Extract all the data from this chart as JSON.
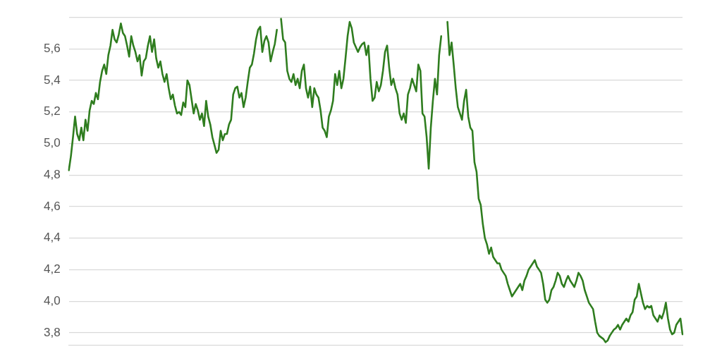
{
  "chart_data": {
    "type": "line",
    "categories": [
      null,
      null,
      null,
      null,
      null,
      null,
      null,
      null,
      null,
      null,
      null,
      null,
      null,
      null,
      null,
      null,
      null,
      null,
      null,
      null,
      null,
      null,
      null,
      null,
      null,
      null,
      null,
      null,
      null,
      null,
      null,
      null,
      null,
      null,
      null,
      null,
      null,
      null,
      null,
      null,
      null,
      null,
      null,
      null,
      null,
      null,
      null,
      null,
      null,
      null,
      null,
      null,
      null,
      null,
      null,
      null,
      null,
      null,
      null,
      null,
      null,
      null,
      null,
      null,
      null,
      null,
      null,
      null,
      null,
      null,
      null,
      null,
      null,
      null,
      null,
      null,
      null,
      null,
      null,
      null,
      null,
      null,
      null,
      null,
      null,
      null,
      null,
      null,
      null,
      null,
      null,
      null,
      null,
      null,
      null,
      null,
      null,
      null,
      null,
      null,
      null,
      null,
      null,
      null,
      null,
      null,
      null,
      null,
      null,
      null,
      null,
      null,
      null,
      null,
      null,
      null,
      null,
      null,
      null,
      null,
      null,
      null,
      null,
      null,
      null,
      null,
      null,
      null,
      null,
      null,
      null,
      null,
      null,
      null,
      null,
      null,
      null,
      null,
      null,
      null,
      null,
      null,
      null,
      null,
      null,
      null,
      null,
      null,
      null,
      null,
      null,
      null,
      null,
      null,
      null,
      null,
      null,
      null,
      null,
      null,
      null,
      null,
      null,
      null,
      null,
      null,
      null,
      null,
      null,
      null,
      null,
      null,
      null,
      null,
      null,
      null,
      null,
      null,
      null,
      null,
      null,
      null,
      null,
      null,
      null,
      null,
      null,
      null,
      null,
      null,
      null,
      null,
      null,
      null,
      null,
      null,
      null,
      null,
      null,
      null,
      null,
      null,
      null,
      null,
      null,
      null,
      null,
      null,
      null,
      null,
      null,
      null,
      null,
      null,
      null,
      null,
      null,
      null,
      null,
      null,
      null,
      null,
      null,
      null,
      null,
      null,
      null,
      null,
      null,
      null,
      null,
      null,
      null,
      null,
      null,
      null,
      null,
      null,
      null,
      null,
      null,
      null,
      null,
      null,
      null,
      null,
      null,
      null,
      null,
      null,
      null,
      null,
      null,
      null,
      null,
      null,
      null,
      null,
      null,
      null,
      null,
      null,
      null,
      null,
      null,
      null,
      null,
      null,
      null,
      null,
      null,
      null,
      null,
      null,
      null,
      null,
      null,
      null,
      null,
      null,
      null,
      null,
      null,
      null,
      null,
      null,
      null,
      null,
      null,
      null,
      null,
      null,
      null,
      null,
      null,
      null
    ],
    "series": [
      {
        "color": "#2f7d1f",
        "values": [
          4.83,
          4.92,
          5.04,
          5.17,
          5.06,
          5.02,
          5.1,
          5.02,
          5.15,
          5.08,
          5.21,
          5.27,
          5.25,
          5.32,
          5.28,
          5.39,
          5.46,
          5.5,
          5.44,
          5.56,
          5.62,
          5.72,
          5.66,
          5.64,
          5.69,
          5.76,
          5.7,
          5.68,
          5.62,
          5.55,
          5.68,
          5.62,
          5.58,
          5.52,
          5.56,
          5.43,
          5.52,
          5.54,
          5.62,
          5.68,
          5.58,
          5.66,
          5.54,
          5.48,
          5.52,
          5.44,
          5.39,
          5.44,
          5.35,
          5.28,
          5.31,
          5.24,
          5.19,
          5.2,
          5.18,
          5.26,
          5.23,
          5.4,
          5.37,
          5.28,
          5.19,
          5.25,
          5.21,
          5.15,
          5.19,
          5.11,
          5.27,
          5.17,
          5.12,
          5.04,
          4.99,
          4.94,
          4.96,
          5.08,
          5.02,
          5.06,
          5.06,
          5.12,
          5.15,
          5.31,
          5.35,
          5.36,
          5.29,
          5.32,
          5.23,
          5.29,
          5.39,
          5.48,
          5.5,
          5.57,
          5.66,
          5.72,
          5.74,
          5.58,
          5.65,
          5.68,
          5.64,
          5.52,
          5.58,
          5.63,
          5.72,
          null,
          5.79,
          5.66,
          5.64,
          5.46,
          5.41,
          5.39,
          5.44,
          5.37,
          5.41,
          5.35,
          5.46,
          5.5,
          5.35,
          5.29,
          5.36,
          5.23,
          5.35,
          5.31,
          5.29,
          5.21,
          5.1,
          5.08,
          5.04,
          5.17,
          5.21,
          5.27,
          5.44,
          5.37,
          5.46,
          5.35,
          5.41,
          5.54,
          5.68,
          5.77,
          5.73,
          5.64,
          5.61,
          5.58,
          5.61,
          5.63,
          5.64,
          5.56,
          5.62,
          5.41,
          5.27,
          5.29,
          5.39,
          5.33,
          5.37,
          5.46,
          5.58,
          5.62,
          5.48,
          5.37,
          5.41,
          5.35,
          5.31,
          5.19,
          5.15,
          5.19,
          5.13,
          5.31,
          5.35,
          5.41,
          5.37,
          5.33,
          5.5,
          5.46,
          5.19,
          5.17,
          5.04,
          4.84,
          5.1,
          5.27,
          5.41,
          5.31,
          5.56,
          5.68,
          null,
          null,
          5.77,
          5.56,
          5.64,
          5.5,
          5.35,
          5.23,
          5.19,
          5.15,
          5.27,
          5.34,
          5.17,
          5.1,
          5.08,
          4.88,
          4.82,
          4.65,
          4.61,
          4.49,
          4.4,
          4.36,
          4.3,
          4.34,
          4.28,
          4.26,
          4.24,
          4.24,
          4.2,
          4.18,
          4.16,
          4.11,
          4.07,
          4.03,
          4.05,
          4.07,
          4.09,
          4.11,
          4.07,
          4.13,
          4.16,
          4.2,
          4.22,
          4.24,
          4.26,
          4.22,
          4.2,
          4.18,
          4.11,
          4.01,
          3.99,
          4.01,
          4.07,
          4.09,
          4.13,
          4.18,
          4.16,
          4.11,
          4.09,
          4.13,
          4.16,
          4.13,
          4.11,
          4.09,
          4.13,
          4.18,
          4.16,
          4.13,
          4.07,
          4.03,
          3.99,
          3.97,
          3.95,
          3.87,
          3.8,
          3.78,
          3.77,
          3.76,
          3.74,
          3.75,
          3.78,
          3.8,
          3.82,
          3.83,
          3.85,
          3.82,
          3.85,
          3.87,
          3.89,
          3.87,
          3.91,
          3.93,
          4.01,
          4.03,
          4.11,
          4.05,
          3.99,
          3.95,
          3.97,
          3.96,
          3.97,
          3.91,
          3.89,
          3.87,
          3.91,
          3.89,
          3.93,
          3.99,
          3.89,
          3.82,
          3.79,
          3.8,
          3.85,
          3.87,
          3.89,
          3.79
        ]
      }
    ],
    "ylim": [
      3.72,
      5.81
    ],
    "yticks": [
      {
        "value": 3.8,
        "label": "3,8"
      },
      {
        "value": 4.0,
        "label": "4,0"
      },
      {
        "value": 4.2,
        "label": "4,2"
      },
      {
        "value": 4.4,
        "label": "4,4"
      },
      {
        "value": 4.6,
        "label": "4,6"
      },
      {
        "value": 4.8,
        "label": "4,8"
      },
      {
        "value": 5.0,
        "label": "5,0"
      },
      {
        "value": 5.2,
        "label": "5,2"
      },
      {
        "value": 5.4,
        "label": "5,4"
      },
      {
        "value": 5.6,
        "label": "5,6"
      },
      {
        "value": 5.8,
        "label": null
      }
    ],
    "grid": "y",
    "tick_labels": "y",
    "marker": "none",
    "line_style": "solid"
  }
}
